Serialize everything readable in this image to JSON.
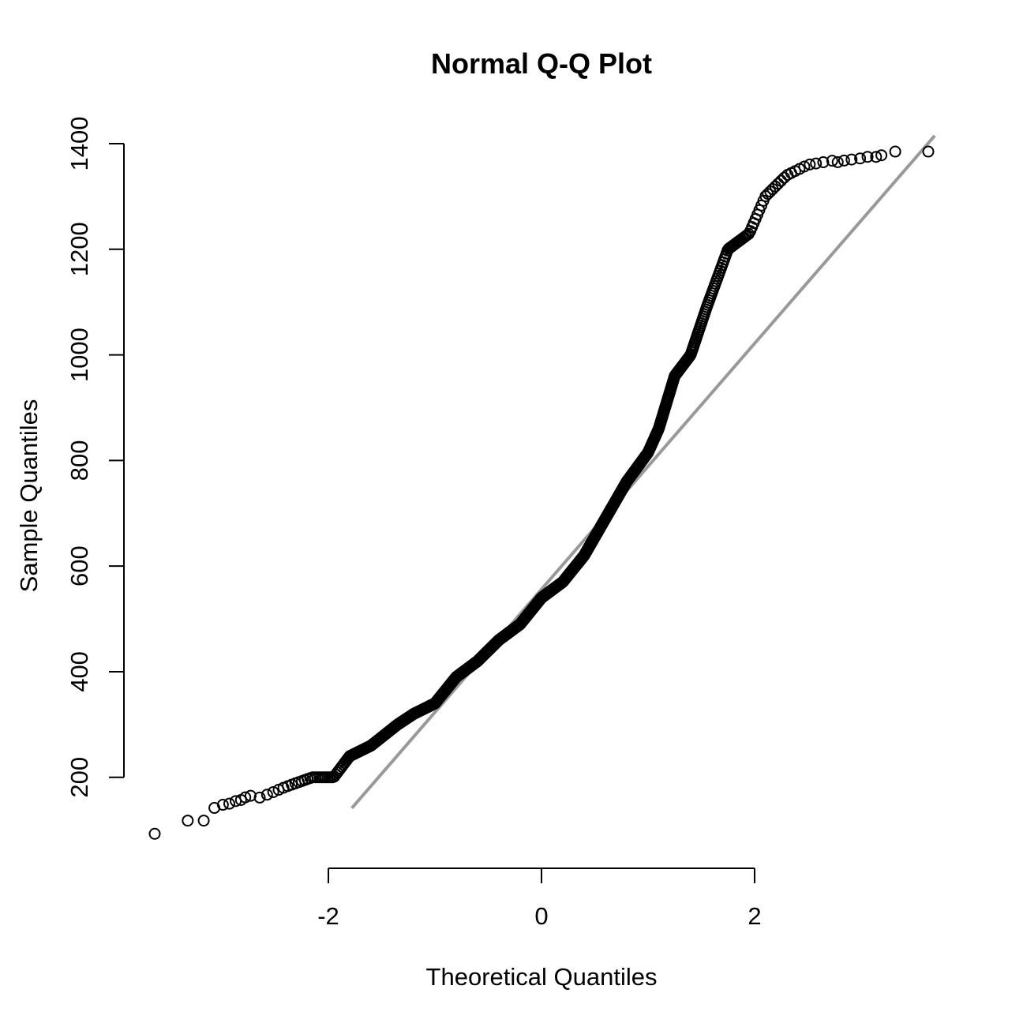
{
  "chart_data": {
    "type": "scatter",
    "title": "Normal Q-Q Plot",
    "xlabel": "Theoretical Quantiles",
    "ylabel": "Sample Quantiles",
    "xlim": [
      -3.63,
      3.63
    ],
    "ylim": [
      80,
      1400
    ],
    "x_ticks": [
      -2,
      0,
      2
    ],
    "x_tick_labels": [
      "-2",
      "0",
      "2"
    ],
    "y_ticks": [
      200,
      400,
      600,
      800,
      1000,
      1200,
      1400
    ],
    "y_tick_labels": [
      "200",
      "400",
      "600",
      "800",
      "1000",
      "1200",
      "1400"
    ],
    "grid": false,
    "legend": "none",
    "point_marker": "open-circle",
    "reference_line": {
      "color": "#999999",
      "through": [
        [
          -1.8,
          137
        ],
        [
          3.69,
          1415
        ]
      ]
    },
    "quantile_profile": {
      "description": "sample quantile read off the plot at each theoretical quantile",
      "x": [
        -3.63,
        -3.19,
        -3.05,
        -2.9,
        -2.6,
        -2.4,
        -2.15,
        -1.95,
        -1.8,
        -1.6,
        -1.35,
        -1.2,
        -1.0,
        -0.8,
        -0.6,
        -0.4,
        -0.2,
        0.0,
        0.2,
        0.4,
        0.6,
        0.8,
        1.0,
        1.1,
        1.25,
        1.4,
        1.55,
        1.75,
        1.95,
        2.1,
        2.3,
        2.5,
        2.8,
        3.1,
        3.3,
        3.63
      ],
      "y": [
        93,
        118,
        118,
        142,
        165,
        182,
        200,
        200,
        240,
        260,
        300,
        320,
        340,
        390,
        420,
        460,
        490,
        540,
        570,
        620,
        690,
        760,
        815,
        860,
        960,
        1000,
        1090,
        1200,
        1230,
        1300,
        1340,
        1360,
        1370,
        1375,
        1385,
        1385
      ]
    },
    "extreme_points": {
      "x": [
        -3.63,
        -3.32,
        -3.17,
        -3.07,
        -2.99,
        -2.93,
        -2.87,
        -2.82,
        -2.78,
        -2.73,
        2.78,
        2.84,
        2.91,
        2.99,
        3.06,
        3.14,
        3.19,
        3.32,
        3.63
      ],
      "y": [
        93,
        118,
        118,
        142,
        148,
        150,
        155,
        157,
        162,
        165,
        1365,
        1368,
        1370,
        1372,
        1375,
        1375,
        1378,
        1385,
        1385
      ]
    },
    "bulk_sample_count": 1100
  }
}
